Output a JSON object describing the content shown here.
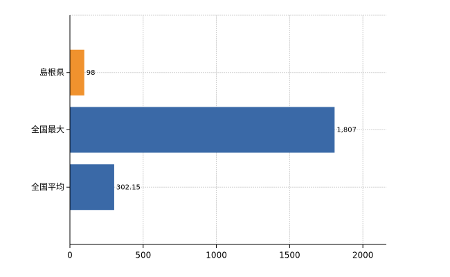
{
  "chart_data": {
    "type": "bar",
    "orientation": "horizontal",
    "categories": [
      "島根県",
      "全国最大",
      "全国平均"
    ],
    "values": [
      98,
      1807,
      302.15
    ],
    "value_labels": [
      "98",
      "1,807",
      "302.15"
    ],
    "colors": [
      "#f0922e",
      "#3a69a7",
      "#3a69a7"
    ],
    "xlim": [
      0,
      2160
    ],
    "xticks": [
      0,
      500,
      1000,
      1500,
      2000
    ],
    "grid": true
  }
}
